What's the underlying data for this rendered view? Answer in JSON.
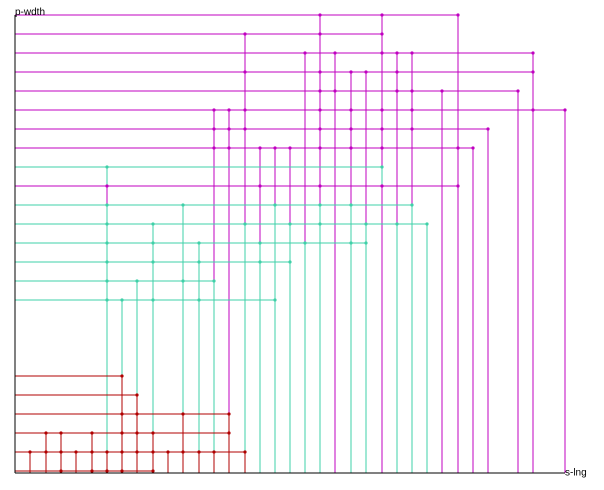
{
  "chart_data": {
    "type": "scatter",
    "xlabel": "s-lng",
    "ylabel": "p-wdth",
    "grid": false,
    "legend": "none",
    "colors": {
      "magenta": "#c000c0",
      "teal": "#3fd0a8",
      "darkred": "#b00000",
      "axis": "#000000"
    },
    "xlim": [
      0,
      550
    ],
    "ylim": [
      0,
      458
    ],
    "lines": [
      {
        "y": 458,
        "color": "magenta",
        "ticks": [
          0,
          305,
          367,
          443
        ]
      },
      {
        "y": 439,
        "color": "magenta",
        "ticks": [
          0,
          230,
          305,
          367
        ]
      },
      {
        "y": 420,
        "color": "magenta",
        "ticks": [
          0,
          290,
          320,
          367,
          382,
          397,
          518
        ]
      },
      {
        "y": 401,
        "color": "magenta",
        "ticks": [
          0,
          230,
          305,
          336,
          351,
          382,
          518
        ]
      },
      {
        "y": 382,
        "color": "magenta",
        "ticks": [
          0,
          305,
          320,
          382,
          397,
          427,
          503
        ]
      },
      {
        "y": 363,
        "color": "magenta",
        "ticks": [
          0,
          199,
          214,
          230,
          305,
          336,
          367,
          397,
          518,
          550
        ]
      },
      {
        "y": 344,
        "color": "magenta",
        "ticks": [
          0,
          199,
          214,
          230,
          305,
          336,
          367,
          397,
          473
        ]
      },
      {
        "y": 325,
        "color": "magenta",
        "ticks": [
          0,
          199,
          214,
          245,
          260,
          275,
          305,
          336,
          367,
          443,
          458
        ]
      },
      {
        "y": 306,
        "color": "teal",
        "ticks": [
          0,
          92,
          367
        ]
      },
      {
        "y": 287,
        "color": "magenta",
        "ticks": [
          0,
          92,
          245,
          305,
          367,
          443
        ]
      },
      {
        "y": 268,
        "color": "teal",
        "ticks": [
          0,
          92,
          168,
          260,
          305,
          336,
          397
        ]
      },
      {
        "y": 249,
        "color": "teal",
        "ticks": [
          0,
          92,
          138,
          230,
          275,
          305,
          351,
          382,
          412
        ]
      },
      {
        "y": 230,
        "color": "teal",
        "ticks": [
          0,
          92,
          138,
          184,
          245,
          290,
          336,
          351
        ]
      },
      {
        "y": 211,
        "color": "teal",
        "ticks": [
          0,
          92,
          138,
          184,
          245,
          275
        ]
      },
      {
        "y": 192,
        "color": "teal",
        "ticks": [
          0,
          92,
          122,
          168,
          199
        ]
      },
      {
        "y": 173,
        "color": "teal",
        "ticks": [
          0,
          92,
          107,
          138,
          184,
          260
        ]
      },
      {
        "y": 97,
        "color": "darkred",
        "ticks": [
          0,
          107
        ]
      },
      {
        "y": 78,
        "color": "darkred",
        "ticks": [
          0,
          122
        ]
      },
      {
        "y": 59,
        "color": "darkred",
        "ticks": [
          0,
          107,
          122,
          168,
          214
        ]
      },
      {
        "y": 40,
        "color": "darkred",
        "ticks": [
          0,
          31,
          46,
          77,
          107,
          122,
          138,
          214
        ]
      },
      {
        "y": 21,
        "color": "darkred",
        "ticks": [
          0,
          15,
          31,
          46,
          61,
          77,
          92,
          107,
          122,
          138,
          153,
          168,
          184,
          199,
          230
        ]
      },
      {
        "y": 2,
        "color": "darkred",
        "ticks": [
          0,
          46,
          77,
          92,
          107,
          138
        ]
      }
    ]
  }
}
